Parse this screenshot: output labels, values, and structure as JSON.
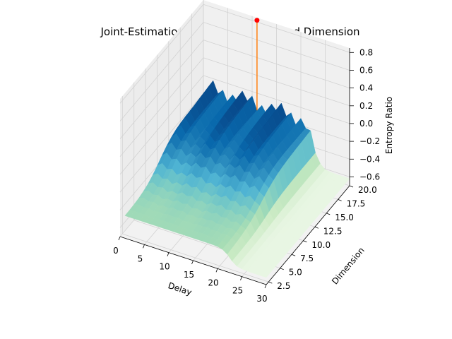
{
  "chart_data": {
    "type": "surface3d",
    "title": "Joint-Estimation of Optimal Delay and Dimension",
    "xlabel": "Delay",
    "ylabel": "Dimension",
    "zlabel": "Entropy Ratio",
    "xlim": [
      0,
      30
    ],
    "ylim": [
      2,
      20
    ],
    "zlim": [
      -0.7,
      0.85
    ],
    "x_ticks": [
      "0",
      "5",
      "10",
      "15",
      "20",
      "25",
      "30"
    ],
    "y_ticks": [
      "2.5",
      "5.0",
      "7.5",
      "10.0",
      "12.5",
      "15.0",
      "17.5",
      "20.0"
    ],
    "z_ticks": [
      "−0.6",
      "−0.4",
      "−0.2",
      "0.0",
      "0.2",
      "0.4",
      "0.6",
      "0.8"
    ],
    "grid": true,
    "colormap": "GnBu",
    "surface": {
      "delay_range": [
        1,
        30
      ],
      "dimension_range": [
        2,
        20
      ],
      "description_values": {
        "high_dimension_plateau": -0.12,
        "low_dimension_floor": -0.45,
        "large_delay_floor": -0.62
      }
    },
    "optimum_marker": {
      "delay": 11,
      "dimension": 20,
      "entropy_ratio": 0.82,
      "color": "#ff0000",
      "stem_color": "#ff7f0e"
    }
  }
}
